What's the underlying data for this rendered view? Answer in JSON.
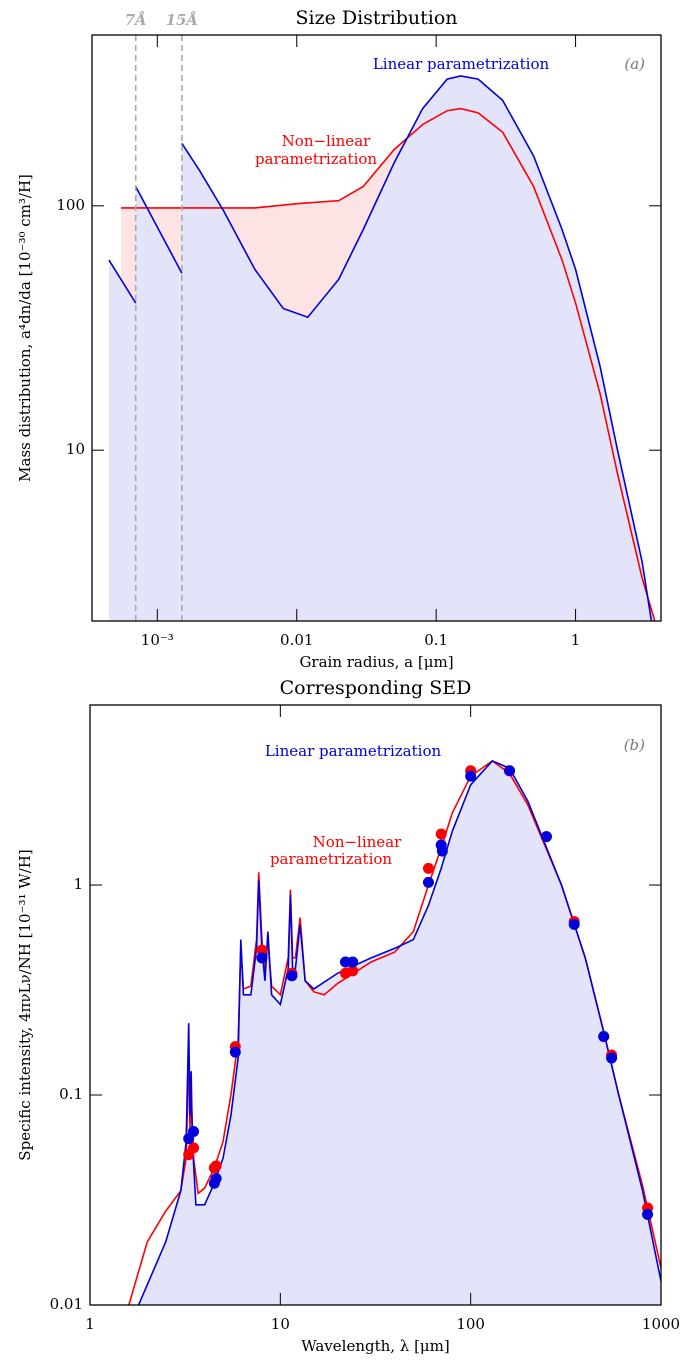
{
  "chart_data": [
    {
      "type": "line",
      "title": "Size Distribution",
      "x_label": "Grain radius, a [μm]",
      "y_label": "Mass distribution, a⁴dn/da [10⁻³⁰ cm³/H]",
      "panel_label": "(a)",
      "xlog": true,
      "ylog": true,
      "xlim": [
        0.00034,
        4.1
      ],
      "ylim": [
        2,
        500
      ],
      "xticks": [
        {
          "value": 0.001,
          "label": "10⁻³"
        },
        0.01,
        0.1,
        1
      ],
      "yticks": [
        10,
        100
      ],
      "vlines": [
        {
          "value": 0.0007,
          "label": "7Å"
        },
        {
          "value": 0.0015,
          "label": "15Å"
        }
      ],
      "series": [
        {
          "name": [
            "Non−linear",
            "parametrization"
          ],
          "color": "#ff0000",
          "fill": "#fde3e3",
          "x": [
            0.00055,
            0.001,
            0.002,
            0.005,
            0.01,
            0.02,
            0.03,
            0.05,
            0.08,
            0.12,
            0.15,
            0.2,
            0.3,
            0.5,
            0.8,
            1,
            1.5,
            2,
            3,
            3.7
          ],
          "values": [
            98,
            98,
            98,
            98,
            102,
            105,
            120,
            170,
            215,
            245,
            250,
            240,
            200,
            120,
            60,
            40,
            17,
            8,
            3,
            2
          ]
        },
        {
          "name": [
            "Linear parametrization"
          ],
          "color": "#0000dd",
          "fill": "#e3e3fa",
          "x": [
            0.00045,
            0.0007,
            null,
            0.0007,
            0.0015,
            null,
            0.0015,
            0.002,
            0.003,
            0.005,
            0.008,
            0.012,
            0.02,
            0.03,
            0.05,
            0.08,
            0.12,
            0.15,
            0.2,
            0.3,
            0.5,
            0.8,
            1,
            1.5,
            2,
            3,
            3.5
          ],
          "values": [
            60,
            40,
            null,
            120,
            53,
            null,
            180,
            140,
            95,
            55,
            38,
            35,
            50,
            80,
            150,
            250,
            330,
            340,
            330,
            270,
            160,
            80,
            55,
            22,
            10,
            3.5,
            2
          ]
        }
      ]
    },
    {
      "type": "line",
      "title": "Corresponding SED",
      "x_label": "Wavelength, λ [μm]",
      "y_label": "Specific intensity, 4πνLν/NH [10⁻³¹ W/H]",
      "panel_label": "(b)",
      "xlog": true,
      "ylog": true,
      "xlim": [
        1,
        1000
      ],
      "ylim": [
        0.01,
        7.2
      ],
      "xticks": [
        1,
        10,
        100,
        1000
      ],
      "yticks": [
        0.01,
        0.1,
        1
      ],
      "series": [
        {
          "name": [
            "Non−linear",
            "parametrization"
          ],
          "color": "#ff0000",
          "x": [
            1.6,
            2,
            2.5,
            3,
            3.2,
            3.3,
            3.35,
            3.4,
            3.5,
            3.7,
            4,
            4.5,
            5,
            5.5,
            6,
            6.2,
            6.4,
            7,
            7.5,
            7.7,
            8,
            8.3,
            8.6,
            9,
            10,
            11,
            11.3,
            11.6,
            12,
            12.7,
            13.5,
            15,
            17,
            20,
            30,
            40,
            50,
            60,
            70,
            80,
            100,
            130,
            160,
            200,
            300,
            400,
            500,
            600,
            800,
            1000
          ],
          "values": [
            0.01,
            0.02,
            0.028,
            0.035,
            0.05,
            0.16,
            0.07,
            0.1,
            0.05,
            0.034,
            0.036,
            0.045,
            0.06,
            0.1,
            0.18,
            0.5,
            0.32,
            0.33,
            0.55,
            1.15,
            0.55,
            0.38,
            0.55,
            0.33,
            0.3,
            0.45,
            0.95,
            0.45,
            0.45,
            0.7,
            0.35,
            0.31,
            0.3,
            0.34,
            0.43,
            0.48,
            0.6,
            1.0,
            1.5,
            2.2,
            3.3,
            3.9,
            3.4,
            2.4,
            1.0,
            0.45,
            0.2,
            0.1,
            0.037,
            0.015
          ],
          "points": {
            "x": [
              3.3,
              3.5,
              4.5,
              4.6,
              5.8,
              8,
              11.5,
              22,
              24,
              60,
              70,
              100,
              160,
              250,
              350,
              500,
              550,
              850
            ],
            "values": [
              0.052,
              0.056,
              0.045,
              0.046,
              0.17,
              0.49,
              0.38,
              0.38,
              0.39,
              1.2,
              1.75,
              3.5,
              3.5,
              1.7,
              0.67,
              0.19,
              0.155,
              0.029
            ]
          }
        },
        {
          "name": [
            "Linear parametrization"
          ],
          "color": "#0000dd",
          "fill": "#e3e3fa",
          "x": [
            1.8,
            2.5,
            3,
            3.2,
            3.3,
            3.35,
            3.4,
            3.45,
            3.6,
            4,
            4.5,
            5,
            5.5,
            6,
            6.2,
            6.4,
            7,
            7.5,
            7.7,
            8,
            8.3,
            8.6,
            9,
            10,
            11,
            11.3,
            11.6,
            12,
            12.7,
            13.5,
            15,
            20,
            30,
            40,
            50,
            60,
            70,
            80,
            100,
            130,
            160,
            200,
            300,
            400,
            500,
            600,
            800,
            1000
          ],
          "values": [
            0.01,
            0.02,
            0.035,
            0.06,
            0.22,
            0.08,
            0.13,
            0.06,
            0.03,
            0.03,
            0.038,
            0.05,
            0.08,
            0.15,
            0.55,
            0.3,
            0.3,
            0.5,
            1.05,
            0.5,
            0.35,
            0.6,
            0.3,
            0.27,
            0.4,
            0.9,
            0.4,
            0.4,
            0.65,
            0.35,
            0.32,
            0.38,
            0.45,
            0.5,
            0.55,
            0.8,
            1.2,
            1.8,
            3.0,
            3.9,
            3.6,
            2.5,
            1.0,
            0.45,
            0.2,
            0.1,
            0.035,
            0.013
          ],
          "points": {
            "x": [
              3.3,
              3.5,
              4.5,
              4.6,
              5.8,
              8,
              11.5,
              22,
              24,
              60,
              70,
              71,
              100,
              160,
              250,
              350,
              500,
              550,
              850
            ],
            "values": [
              0.062,
              0.067,
              0.038,
              0.04,
              0.16,
              0.45,
              0.37,
              0.43,
              0.43,
              1.03,
              1.55,
              1.45,
              3.3,
              3.5,
              1.7,
              0.65,
              0.19,
              0.15,
              0.027
            ]
          }
        }
      ]
    }
  ]
}
